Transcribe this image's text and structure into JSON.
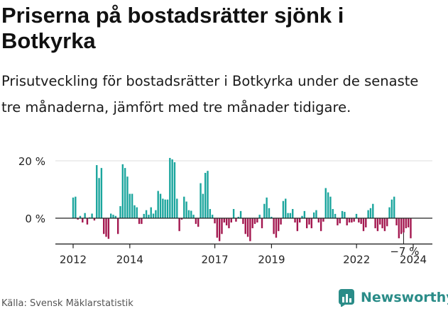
{
  "header": {
    "title": "Priserna på bostadsrätter sjönk i Botkyrka",
    "subtitle": "Prisutveckling för bostadsrätter i Botkyrka under de senaste tre månaderna, jämfört med tre månader tidigare."
  },
  "footer": {
    "source": "Källa: Svensk Mäklarstatistik",
    "brand": "Newsworthy"
  },
  "colors": {
    "positive": "#1aa59d",
    "negative": "#a3174f",
    "axis": "#222222",
    "grid": "#dddddd",
    "brand": "#2a8c88"
  },
  "chart_data": {
    "type": "bar",
    "title": "Priserna på bostadsrätter sjönk i Botkyrka",
    "xlabel": "",
    "ylabel": "",
    "ylim": [
      -9,
      22
    ],
    "y_ticks": [
      {
        "value": 20,
        "label": "20 %"
      },
      {
        "value": 0,
        "label": "0 %"
      }
    ],
    "x_ticks": [
      {
        "value": 2012,
        "label": "2012"
      },
      {
        "value": 2014,
        "label": "2014"
      },
      {
        "value": 2017,
        "label": "2017"
      },
      {
        "value": 2019,
        "label": "2019"
      },
      {
        "value": 2022,
        "label": "2022"
      },
      {
        "value": 2024,
        "label": "2024"
      }
    ],
    "x_range": [
      2012,
      2024
    ],
    "start": 2012.0,
    "step": 0.0833,
    "annotation": {
      "label": "−7 %",
      "index": 140
    },
    "values": [
      7.2,
      7.5,
      -0.5,
      0.8,
      -1.5,
      1.8,
      -2.2,
      0.3,
      1.6,
      -0.8,
      18.5,
      14,
      17.5,
      -5.5,
      -6.5,
      -7.2,
      1.6,
      1.2,
      0.8,
      -5.5,
      4.2,
      18.8,
      17.5,
      14.5,
      8.5,
      8.5,
      4.5,
      3.8,
      -2,
      -2,
      1.5,
      2.8,
      1.2,
      3.8,
      1.6,
      2.8,
      9.5,
      8.5,
      6.8,
      6.5,
      6.5,
      21,
      20.5,
      19.5,
      6.8,
      -4.5,
      -0.5,
      7.5,
      5.8,
      2.8,
      2.6,
      1.2,
      -2,
      -3,
      12.2,
      8.5,
      15.8,
      16.5,
      3.2,
      1.2,
      -1.8,
      -6.8,
      -8,
      -5.5,
      -1.5,
      -2.5,
      -3.5,
      -1.5,
      3.2,
      -1.2,
      0.5,
      2.5,
      -2,
      -5.5,
      -6.5,
      -8,
      -3.5,
      -2,
      -1.5,
      1.2,
      -3.5,
      5,
      7.2,
      3.5,
      0.5,
      -5.5,
      -6.8,
      -4.5,
      -2.2,
      6,
      6.8,
      1.8,
      1.8,
      3.2,
      -1.5,
      -4.5,
      -1.5,
      0.8,
      2.5,
      -3.5,
      -2.2,
      -3.5,
      2,
      2.8,
      -1.5,
      -4.5,
      -1.2,
      10.5,
      9,
      7.5,
      3.2,
      1.5,
      -2.5,
      -1.8,
      2.5,
      2.2,
      -2.5,
      -1.5,
      -1.5,
      -1.2,
      1.5,
      -1.5,
      -2,
      -4.5,
      -3.2,
      2.8,
      3.5,
      5,
      -3.5,
      -4.5,
      -2.2,
      -3.5,
      -4.5,
      -2.8,
      3.8,
      6.5,
      7.5,
      -2.5,
      -7,
      -5.5,
      -5,
      -3.5,
      -3.2,
      -7
    ]
  }
}
